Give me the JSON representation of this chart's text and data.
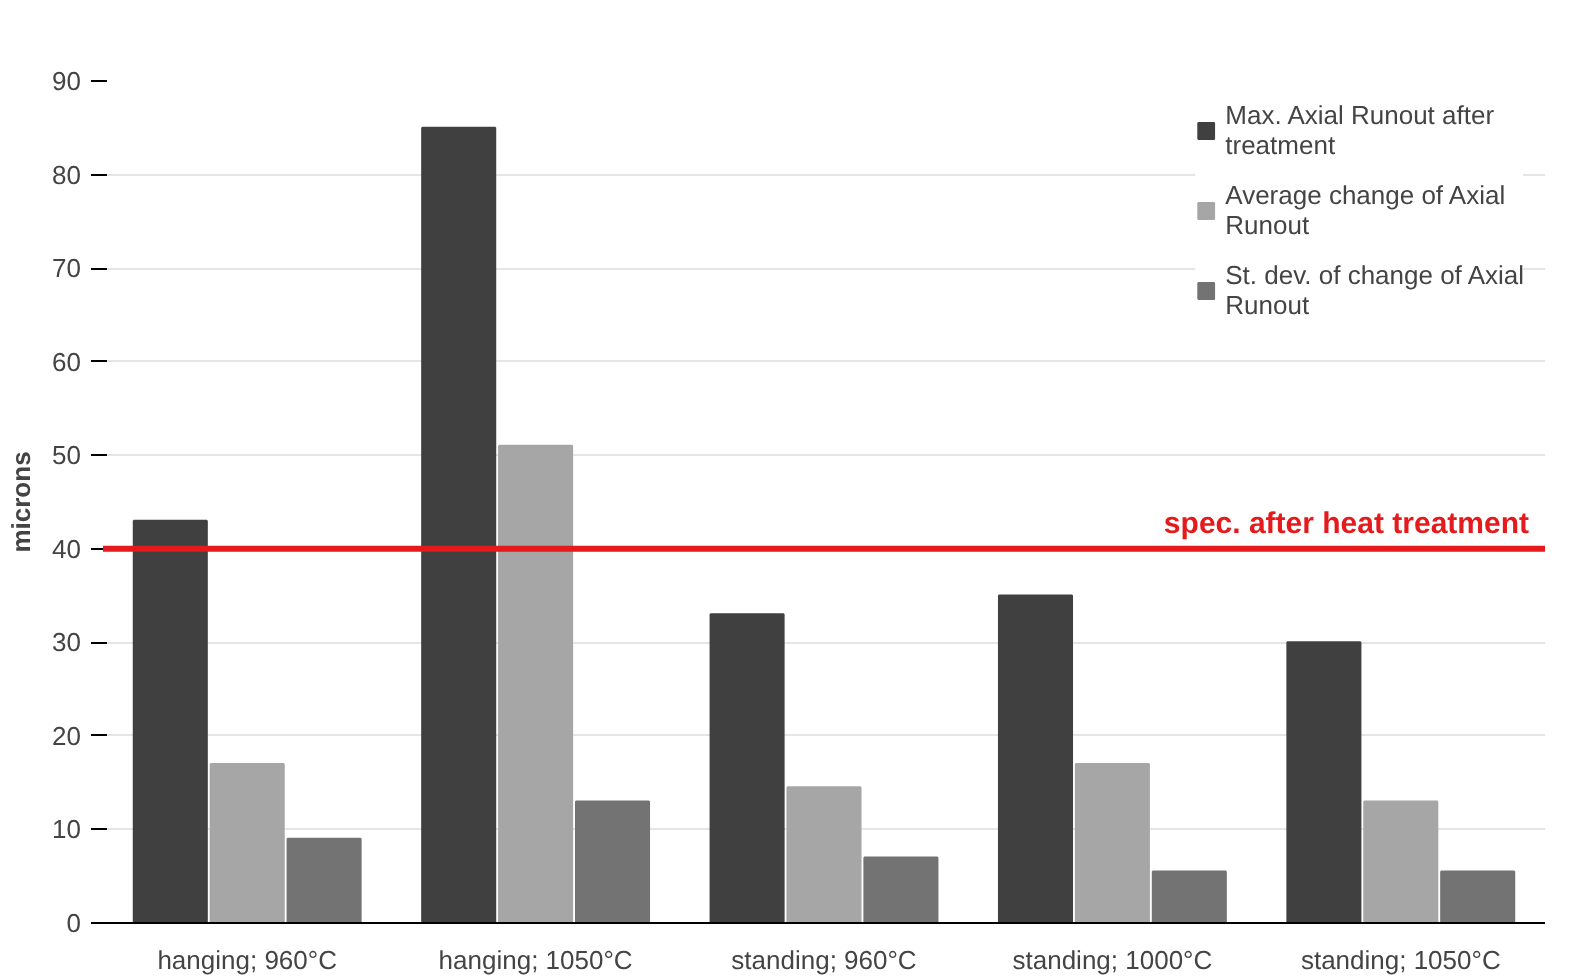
{
  "chart_data": {
    "type": "bar",
    "ylabel": "microns",
    "categories": [
      "hanging; 960°C",
      "hanging; 1050°C",
      "standing; 960°C",
      "standing; 1000°C",
      "standing; 1050°C"
    ],
    "series": [
      {
        "name": "Max. Axial Runout after treatment",
        "color": "#404040",
        "values": [
          43,
          85,
          33,
          35,
          30
        ]
      },
      {
        "name": "Average change of Axial Runout",
        "color": "#a6a6a6",
        "values": [
          17,
          51,
          14.5,
          17,
          13
        ]
      },
      {
        "name": "St. dev. of change of Axial Runout",
        "color": "#737373",
        "values": [
          9,
          13,
          7,
          5.5,
          5.5
        ]
      }
    ],
    "ylim": [
      0,
      90
    ],
    "yticks": [
      0,
      10,
      20,
      30,
      40,
      50,
      60,
      70,
      80,
      90
    ],
    "grid": "y",
    "legend": "top right",
    "ref_lines": [
      {
        "axis": "y",
        "value": 40,
        "label": "spec. after heat treatment",
        "color": "#e41a1c"
      }
    ]
  }
}
